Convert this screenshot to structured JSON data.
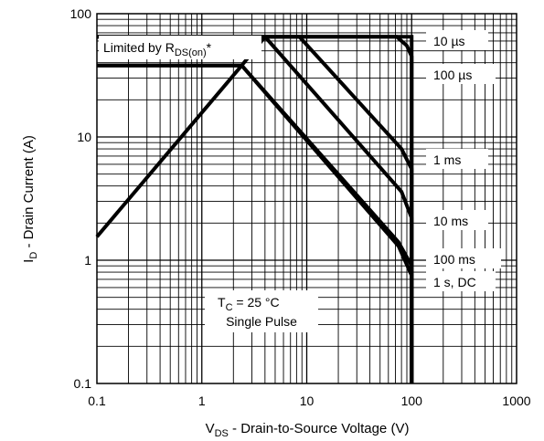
{
  "chart_data": {
    "type": "line",
    "title": "",
    "xscale": "log",
    "yscale": "log",
    "xlim": [
      0.1,
      1000
    ],
    "ylim": [
      0.1,
      100
    ],
    "grid": true,
    "xlabel": {
      "main": "V",
      "sub": "DS",
      "rest": " - Drain-to-Source Voltage (V)"
    },
    "ylabel": {
      "main": "I",
      "sub": "D",
      "rest": " - Drain Current (A)"
    },
    "x_ticks": [
      0.1,
      1,
      10,
      100,
      1000
    ],
    "x_tick_labels": [
      "0.1",
      "1",
      "10",
      "100",
      "1000"
    ],
    "y_ticks": [
      0.1,
      1,
      10,
      100
    ],
    "y_tick_labels": [
      "0.1",
      "1",
      "10",
      "100"
    ],
    "limit_label": {
      "main": "Limited by R",
      "sub": "DS(on)",
      "suffix": "*"
    },
    "condition_labels": {
      "tc_main": "T",
      "tc_sub": "C",
      "tc_rest": " = 25 °C",
      "pulse": "Single Pulse"
    },
    "series": [
      {
        "name": "10 µs",
        "x": [
          0.1,
          100,
          100
        ],
        "y": [
          65,
          65,
          0.1
        ]
      },
      {
        "name": "100 µs",
        "x": [
          0.1,
          72,
          90,
          100,
          100
        ],
        "y": [
          65,
          65,
          55,
          45,
          0.1
        ]
      },
      {
        "name": "1 ms",
        "x": [
          0.1,
          8.5,
          80,
          100,
          100
        ],
        "y": [
          65,
          65,
          8,
          5.5,
          0.1
        ]
      },
      {
        "name": "10 ms",
        "x": [
          0.1,
          4,
          80,
          100,
          100
        ],
        "y": [
          65,
          65,
          3.6,
          2.2,
          0.1
        ]
      },
      {
        "name": "100 ms",
        "x": [
          0.1,
          2.4,
          75,
          100,
          100
        ],
        "y": [
          38,
          38,
          1.4,
          0.9,
          0.1
        ]
      },
      {
        "name": "1 s, DC",
        "x": [
          0.1,
          2.4,
          75,
          100,
          100
        ],
        "y": [
          38,
          38,
          1.3,
          0.75,
          0.1
        ]
      },
      {
        "name": "",
        "x": [
          0.1,
          2.4,
          4
        ],
        "y": [
          1.55,
          38,
          65
        ]
      }
    ],
    "series_labels": [
      "10 µs",
      "100 µs",
      "1 ms",
      "10 ms",
      "100 ms",
      "1 s, DC"
    ]
  }
}
